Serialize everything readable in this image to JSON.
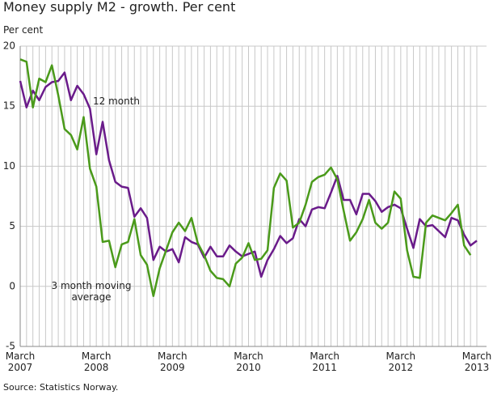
{
  "chart_data": {
    "type": "line",
    "title": "Money supply M2 - growth. Per cent",
    "y_label": "Per cent",
    "source": "Source: Statistics Norway.",
    "annotations": [
      "12 month",
      "3 month moving average"
    ],
    "categories": [
      "March 2007",
      null,
      null,
      null,
      null,
      null,
      null,
      null,
      null,
      null,
      null,
      null,
      "March 2008",
      null,
      null,
      null,
      null,
      null,
      null,
      null,
      null,
      null,
      null,
      null,
      "March 2009",
      null,
      null,
      null,
      null,
      null,
      null,
      null,
      null,
      null,
      null,
      null,
      "March 2010",
      null,
      null,
      null,
      null,
      null,
      null,
      null,
      null,
      null,
      null,
      null,
      "March 2011",
      null,
      null,
      null,
      null,
      null,
      null,
      null,
      null,
      null,
      null,
      null,
      "March 2012",
      null,
      null,
      null,
      null,
      null,
      null,
      null,
      null,
      null,
      null,
      null,
      "March 2013"
    ],
    "series": [
      {
        "color": "#6a1b8a",
        "values": [
          17.1,
          14.9,
          16.3,
          15.5,
          16.6,
          17.0,
          17.1,
          17.8,
          15.5,
          16.7,
          16.0,
          14.8,
          11.0,
          13.7,
          10.5,
          8.7,
          8.3,
          8.2,
          5.8,
          6.5,
          5.7,
          2.2,
          3.3,
          2.9,
          3.1,
          2.0,
          4.1,
          3.7,
          3.5,
          2.4,
          3.3,
          2.5,
          2.5,
          3.4,
          2.9,
          2.5,
          2.7,
          2.9,
          0.8,
          2.2,
          3.1,
          4.2,
          3.6,
          4.0,
          5.6,
          5.0,
          6.4,
          6.6,
          6.5,
          7.8,
          9.2,
          7.2,
          7.2,
          6.0,
          7.7,
          7.7,
          7.1,
          6.2,
          6.6,
          6.8,
          6.5,
          4.8,
          3.2,
          5.6,
          5.0,
          5.1,
          4.6,
          4.1,
          5.7,
          5.5,
          4.3,
          3.4,
          3.8
        ]
      },
      {
        "color": "#4a9a1a",
        "values": [
          18.9,
          18.7,
          14.9,
          17.3,
          17.0,
          18.4,
          15.9,
          13.1,
          12.6,
          11.4,
          14.1,
          9.8,
          8.3,
          3.7,
          3.8,
          1.6,
          3.5,
          3.7,
          5.6,
          2.6,
          1.8,
          -0.8,
          1.5,
          3.0,
          4.5,
          5.3,
          4.6,
          5.7,
          3.6,
          2.6,
          1.3,
          0.7,
          0.6,
          0.0,
          1.9,
          2.4,
          3.6,
          2.2,
          2.3,
          3.0,
          8.2,
          9.4,
          8.8,
          4.9,
          5.3,
          6.8,
          8.7,
          9.1,
          9.3,
          9.9,
          8.9,
          6.3,
          3.8,
          4.5,
          5.6,
          7.2,
          5.3,
          4.8,
          5.3,
          7.9,
          7.3,
          3.0,
          0.8,
          0.7,
          5.3,
          5.9,
          5.7,
          5.5,
          6.1,
          6.8,
          3.4,
          2.6,
          null
        ]
      }
    ],
    "ylim": [
      -5,
      20
    ],
    "yticks": [
      -5,
      0,
      5,
      10,
      15,
      20
    ],
    "grid": true
  }
}
